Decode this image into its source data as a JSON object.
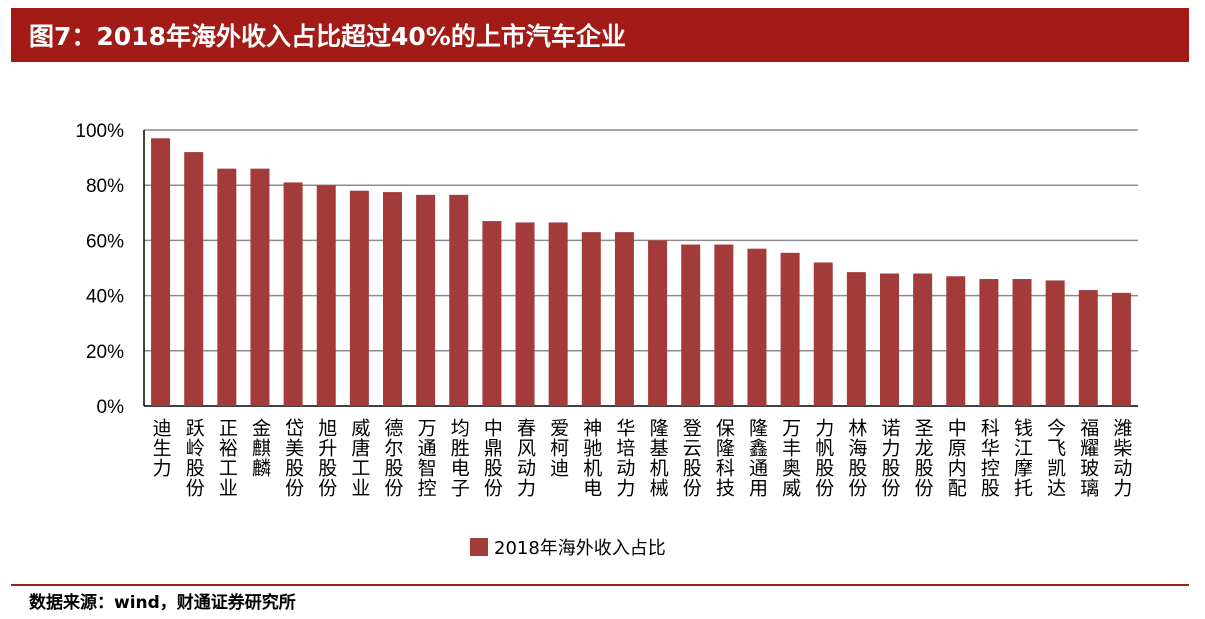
{
  "header": {
    "title": "图7：2018年海外收入占比超过40%的上市汽车企业"
  },
  "footer": {
    "source": "数据来源：wind，财通证券研究所"
  },
  "colors": {
    "title_bar": "#a31b16",
    "bar": "#a33b3b",
    "grid": "#8c8c8c"
  },
  "chart_data": {
    "type": "bar",
    "title": "",
    "xlabel": "",
    "ylabel": "",
    "ylim": [
      0,
      100
    ],
    "yticks": [
      "0%",
      "20%",
      "40%",
      "60%",
      "80%",
      "100%"
    ],
    "grid": true,
    "legend_position": "bottom",
    "categories": [
      "迪生力",
      "跃岭股份",
      "正裕工业",
      "金麒麟",
      "岱美股份",
      "旭升股份",
      "威唐工业",
      "德尔股份",
      "万通智控",
      "均胜电子",
      "中鼎股份",
      "春风动力",
      "爱柯迪",
      "神驰机电",
      "华培动力",
      "隆基机械",
      "登云股份",
      "保隆科技",
      "隆鑫通用",
      "万丰奥威",
      "力帆股份",
      "林海股份",
      "诺力股份",
      "圣龙股份",
      "中原内配",
      "科华控股",
      "钱江摩托",
      "今飞凯达",
      "福耀玻璃",
      "潍柴动力"
    ],
    "series": [
      {
        "name": "2018年海外收入占比",
        "values": [
          97,
          92,
          86,
          86,
          81,
          80,
          78,
          77.5,
          76.5,
          76.5,
          67,
          66.5,
          66.5,
          63,
          63,
          60,
          58.5,
          58.5,
          57,
          55.5,
          52,
          48.5,
          48,
          48,
          47,
          46,
          46,
          45.5,
          42,
          41
        ]
      }
    ]
  }
}
